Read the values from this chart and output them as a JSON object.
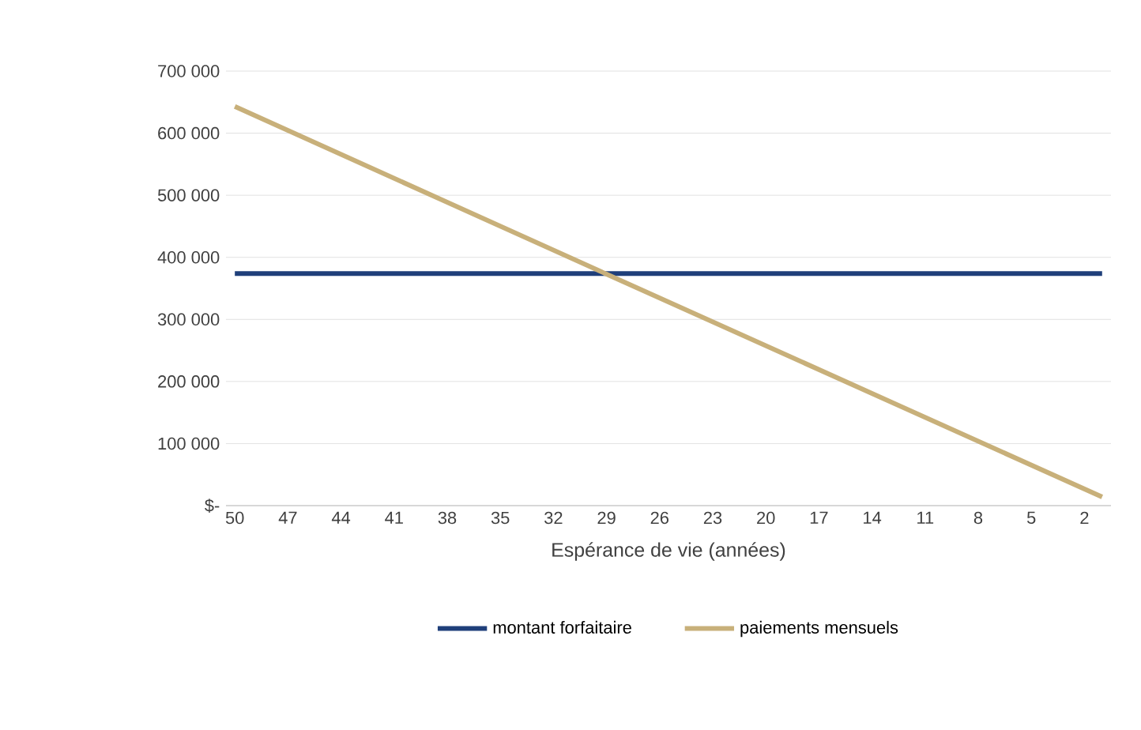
{
  "chart_data": {
    "type": "line",
    "xlabel": "Espérance de vie (années)",
    "xlim": [
      50.5,
      0.5
    ],
    "xticks": [
      50,
      47,
      44,
      41,
      38,
      35,
      32,
      29,
      26,
      23,
      20,
      17,
      14,
      11,
      8,
      5,
      2
    ],
    "ylim": [
      0,
      700000
    ],
    "yticks": [
      {
        "value": 0,
        "label": "$-"
      },
      {
        "value": 100000,
        "label": "100 000"
      },
      {
        "value": 200000,
        "label": "200 000"
      },
      {
        "value": 300000,
        "label": "300 000"
      },
      {
        "value": 400000,
        "label": "400 000"
      },
      {
        "value": 500000,
        "label": "500 000"
      },
      {
        "value": 600000,
        "label": "600 000"
      },
      {
        "value": 700000,
        "label": "700 000"
      }
    ],
    "grid": "y",
    "legend": "bottom",
    "marker": "none",
    "line_style": "solid",
    "series": [
      {
        "name": "montant forfaitaire",
        "color": "#1f3f7a",
        "x": [
          50,
          1
        ],
        "values": [
          374000,
          374000
        ]
      },
      {
        "name": "paiements mensuels",
        "color": "#c8b07a",
        "x": [
          50,
          29,
          1
        ],
        "values": [
          643000,
          373000,
          14000
        ]
      }
    ]
  }
}
